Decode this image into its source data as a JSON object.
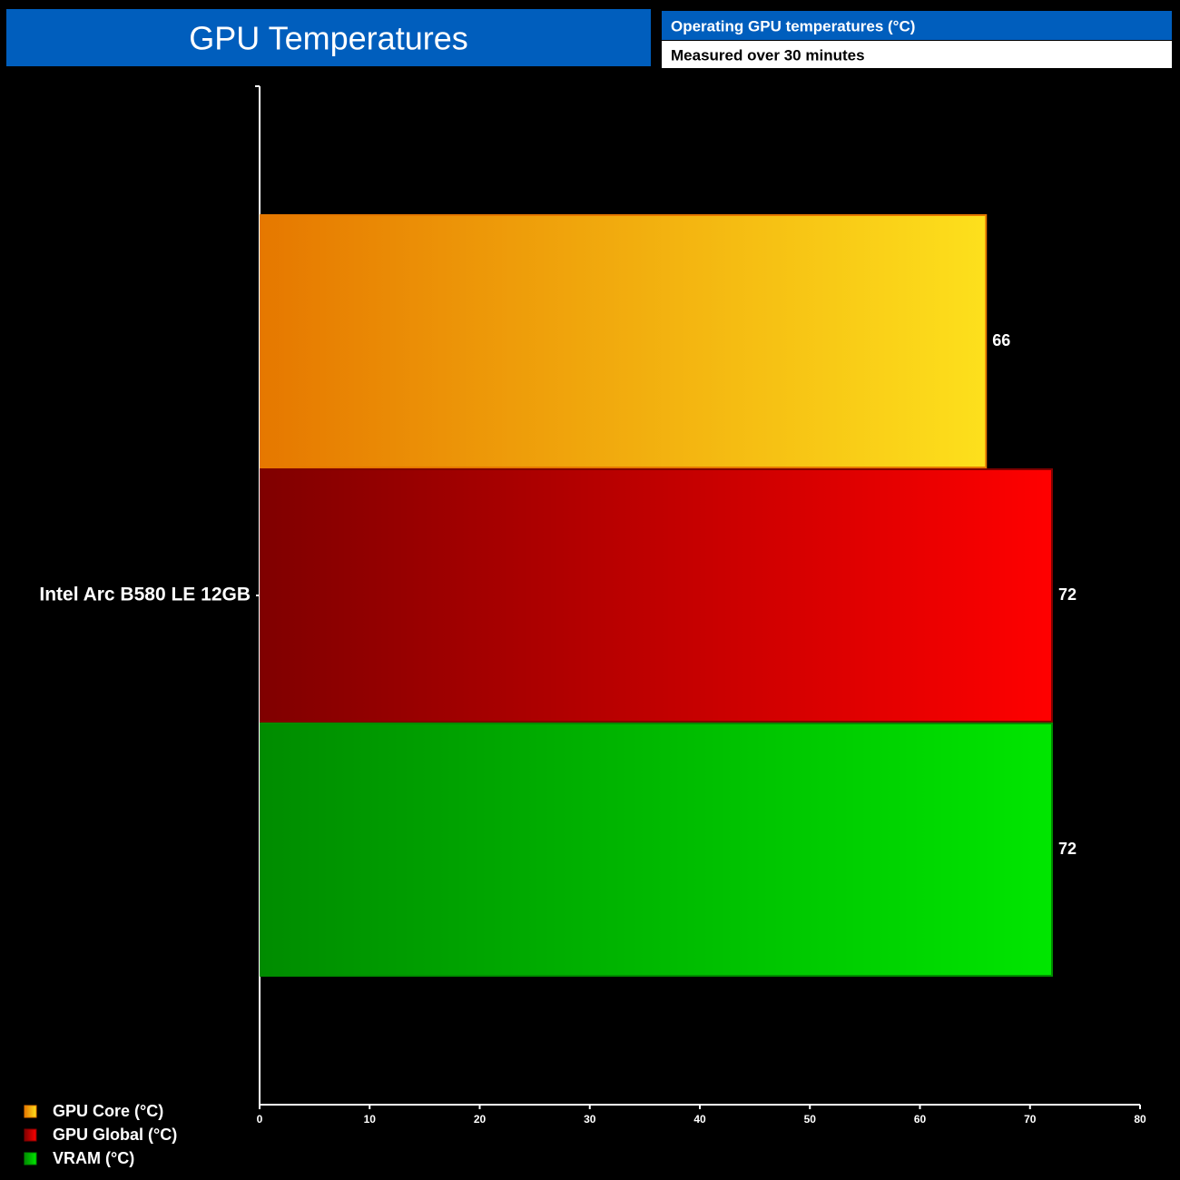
{
  "chart_data": {
    "type": "bar",
    "orientation": "horizontal",
    "title": "GPU Temperatures",
    "subtitle": "Operating GPU temperatures (°C)",
    "note": "Measured over 30 minutes",
    "categories": [
      "Intel Arc B580 LE 12GB"
    ],
    "series": [
      {
        "name": "GPU Core (°C)",
        "color": [
          "#e67800",
          "#fde01c"
        ],
        "values": [
          66
        ]
      },
      {
        "name": "GPU Global (°C)",
        "color": [
          "#800000",
          "#ff0000"
        ],
        "values": [
          72
        ]
      },
      {
        "name": "VRAM (°C)",
        "color": [
          "#008c00",
          "#00e600"
        ],
        "values": [
          72
        ]
      }
    ],
    "xlim": [
      0,
      80
    ],
    "xticks": [
      0,
      10,
      20,
      30,
      40,
      50,
      60,
      70,
      80
    ],
    "legend": "bottom-left"
  }
}
